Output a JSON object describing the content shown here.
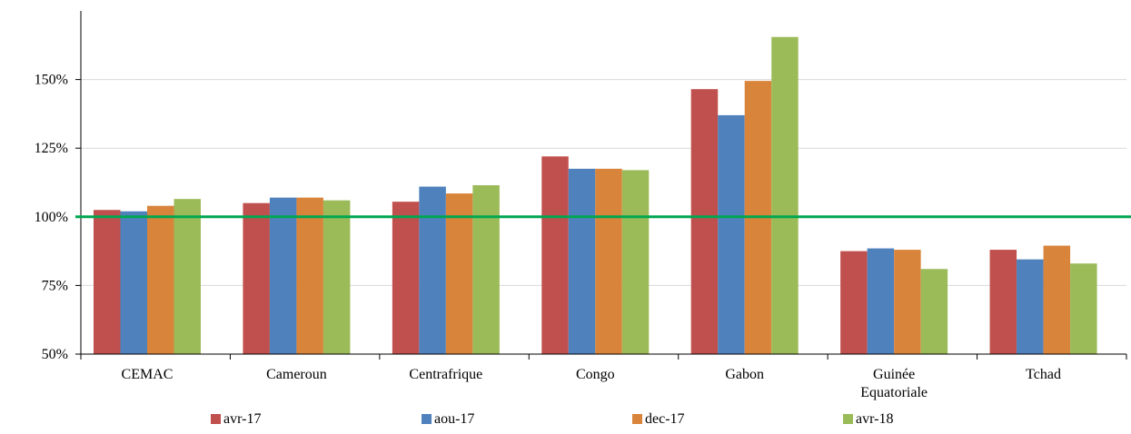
{
  "chart_data": {
    "type": "bar",
    "categories": [
      [
        "CEMAC"
      ],
      [
        "Cameroun"
      ],
      [
        "Centrafrique"
      ],
      [
        "Congo"
      ],
      [
        "Gabon"
      ],
      [
        "Guinée",
        "Equatoriale"
      ],
      [
        "Tchad"
      ]
    ],
    "series": [
      {
        "name": "avr-17",
        "color": "#C0504D",
        "values": [
          102.5,
          105,
          105.5,
          122,
          146.5,
          87.5,
          88
        ]
      },
      {
        "name": "aou-17",
        "color": "#4F81BD",
        "values": [
          102,
          107,
          111,
          117.5,
          137,
          88.5,
          84.5
        ]
      },
      {
        "name": "dec-17",
        "color": "#D9843B",
        "values": [
          104,
          107,
          108.5,
          117.5,
          149.5,
          88,
          89.5
        ]
      },
      {
        "name": "avr-18",
        "color": "#9BBB59",
        "values": [
          106.5,
          106,
          111.5,
          117,
          165.5,
          81,
          83
        ]
      }
    ],
    "y_ticks": [
      "50%",
      "75%",
      "100%",
      "125%",
      "150%"
    ],
    "y_tick_values": [
      50,
      75,
      100,
      125,
      150
    ],
    "ylim": [
      50,
      175
    ],
    "reference_line": {
      "value": 100,
      "color": "#00A651"
    },
    "grid": true,
    "legend_position": "bottom",
    "title": "",
    "xlabel": "",
    "ylabel": ""
  }
}
